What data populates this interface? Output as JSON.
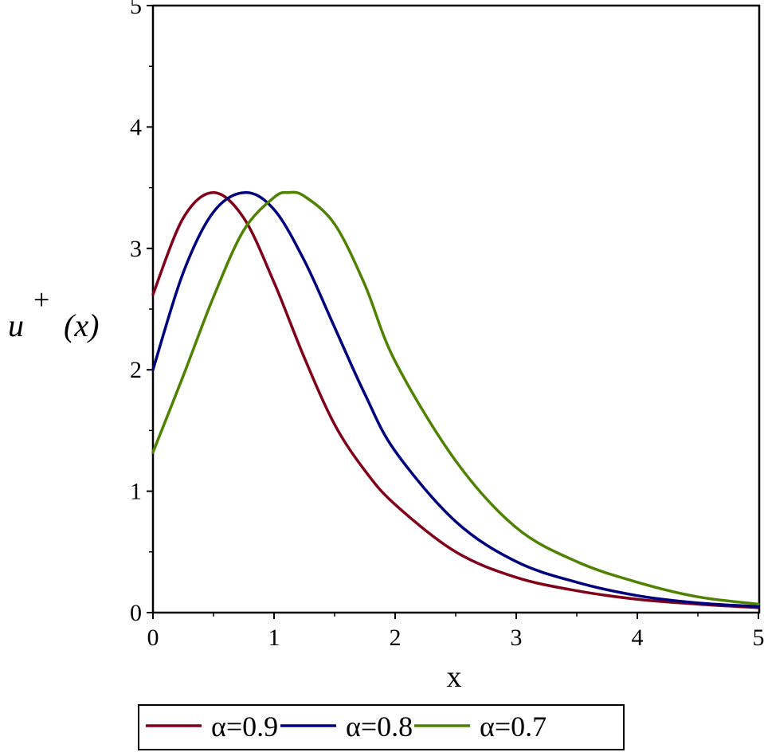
{
  "chart_data": {
    "type": "line",
    "title": "",
    "xlabel": "x",
    "ylabel": "u⁺(x)",
    "ylabel_parts": {
      "base": "u",
      "sup": "+",
      "arg": "(x)"
    },
    "xlim": [
      0,
      5
    ],
    "ylim": [
      0,
      5
    ],
    "grid": false,
    "legend_position": "bottom",
    "x_ticks": [
      "0",
      "1",
      "2",
      "3",
      "4",
      "5"
    ],
    "y_ticks": [
      "0",
      "1",
      "2",
      "3",
      "4",
      "5"
    ],
    "series": [
      {
        "name": "α=0.9",
        "color": "#7f0018",
        "x": [
          0,
          0.25,
          0.5,
          0.75,
          1,
          1.25,
          1.5,
          1.75,
          2,
          2.5,
          3,
          3.5,
          4,
          4.5,
          5
        ],
        "values": [
          2.62,
          3.25,
          3.46,
          3.25,
          2.72,
          2.1,
          1.55,
          1.17,
          0.89,
          0.5,
          0.29,
          0.18,
          0.11,
          0.07,
          0.04
        ]
      },
      {
        "name": "α=0.8",
        "color": "#00007f",
        "x": [
          0,
          0.25,
          0.5,
          0.76,
          1,
          1.25,
          1.5,
          1.75,
          2,
          2.5,
          3,
          3.5,
          4,
          4.5,
          5
        ],
        "values": [
          2.0,
          2.8,
          3.3,
          3.46,
          3.32,
          2.9,
          2.35,
          1.8,
          1.33,
          0.75,
          0.42,
          0.25,
          0.14,
          0.08,
          0.05
        ]
      },
      {
        "name": "α=0.7",
        "color": "#4f8200",
        "x": [
          0,
          0.25,
          0.5,
          0.75,
          1,
          1.12,
          1.25,
          1.5,
          1.75,
          2,
          2.5,
          3,
          3.5,
          4,
          4.5,
          5
        ],
        "values": [
          1.32,
          1.95,
          2.6,
          3.15,
          3.42,
          3.46,
          3.43,
          3.2,
          2.7,
          2.07,
          1.25,
          0.7,
          0.42,
          0.25,
          0.13,
          0.07
        ]
      }
    ]
  }
}
